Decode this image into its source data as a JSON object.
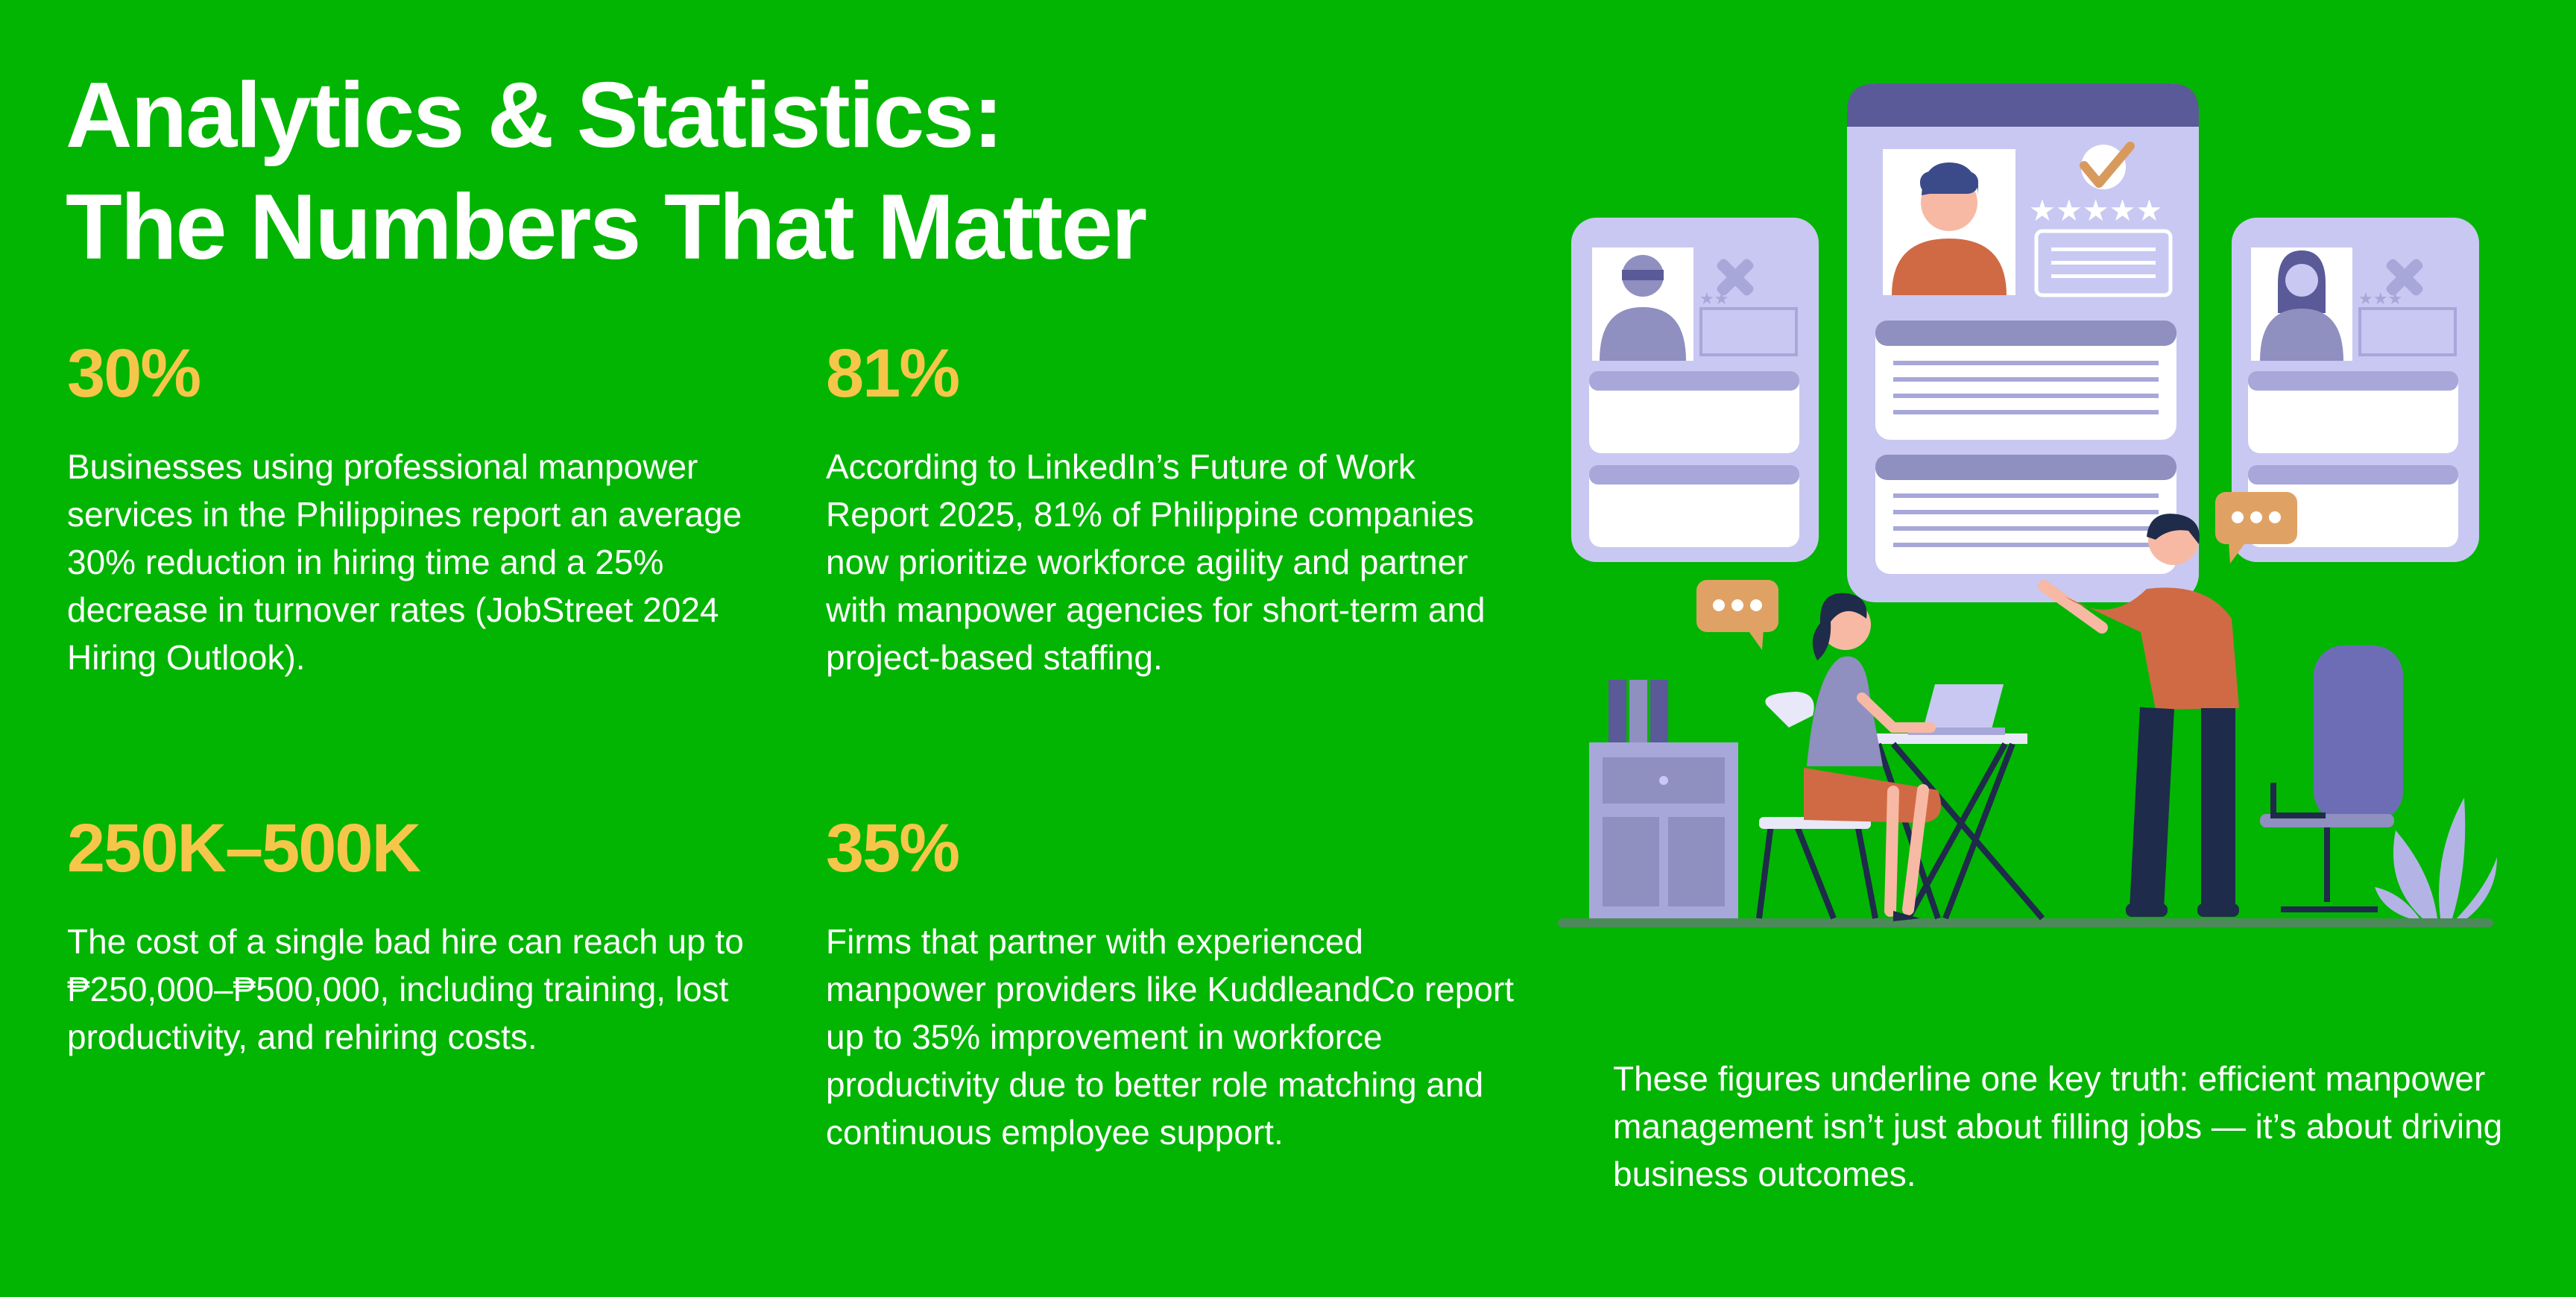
{
  "page": {
    "title_line1": "Analytics & Statistics:",
    "title_line2": "The Numbers That Matter"
  },
  "stats": [
    {
      "value": "30%",
      "description": "Businesses using professional manpower services in the Philippines report an average 30% reduction in hiring time and a 25% decrease in turnover rates (JobStreet 2024 Hiring Outlook)."
    },
    {
      "value": "81%",
      "description": "According to LinkedIn’s Future of Work Report 2025, 81% of Philippine companies now prioritize workforce agility and partner with manpower agencies for short-term and project-based staffing."
    },
    {
      "value": "250K–500K",
      "description": "The cost of a single bad hire can reach up to ₱250,000–₱500,000, including training, lost productivity, and rehiring costs."
    },
    {
      "value": "35%",
      "description": "Firms that partner with experienced manpower providers like KuddleandCo report up to 35% improvement in workforce productivity due to better role matching and continuous employee support."
    }
  ],
  "summary": "These figures underline one key truth: efficient manpower management isn’t just about filling jobs — it’s about driving business outcomes.",
  "colors": {
    "background": "#02b502",
    "stat_value": "#f6c64a",
    "text": "#ffffff",
    "card": "#c9c8f2",
    "card_header": "#5a5a98"
  },
  "illustration": {
    "icons": [
      "recruitment-scene-icon",
      "candidate-profile-card-icon",
      "rejected-x-icon",
      "approved-check-icon",
      "rating-stars-icon",
      "speech-bubble-icon"
    ]
  }
}
